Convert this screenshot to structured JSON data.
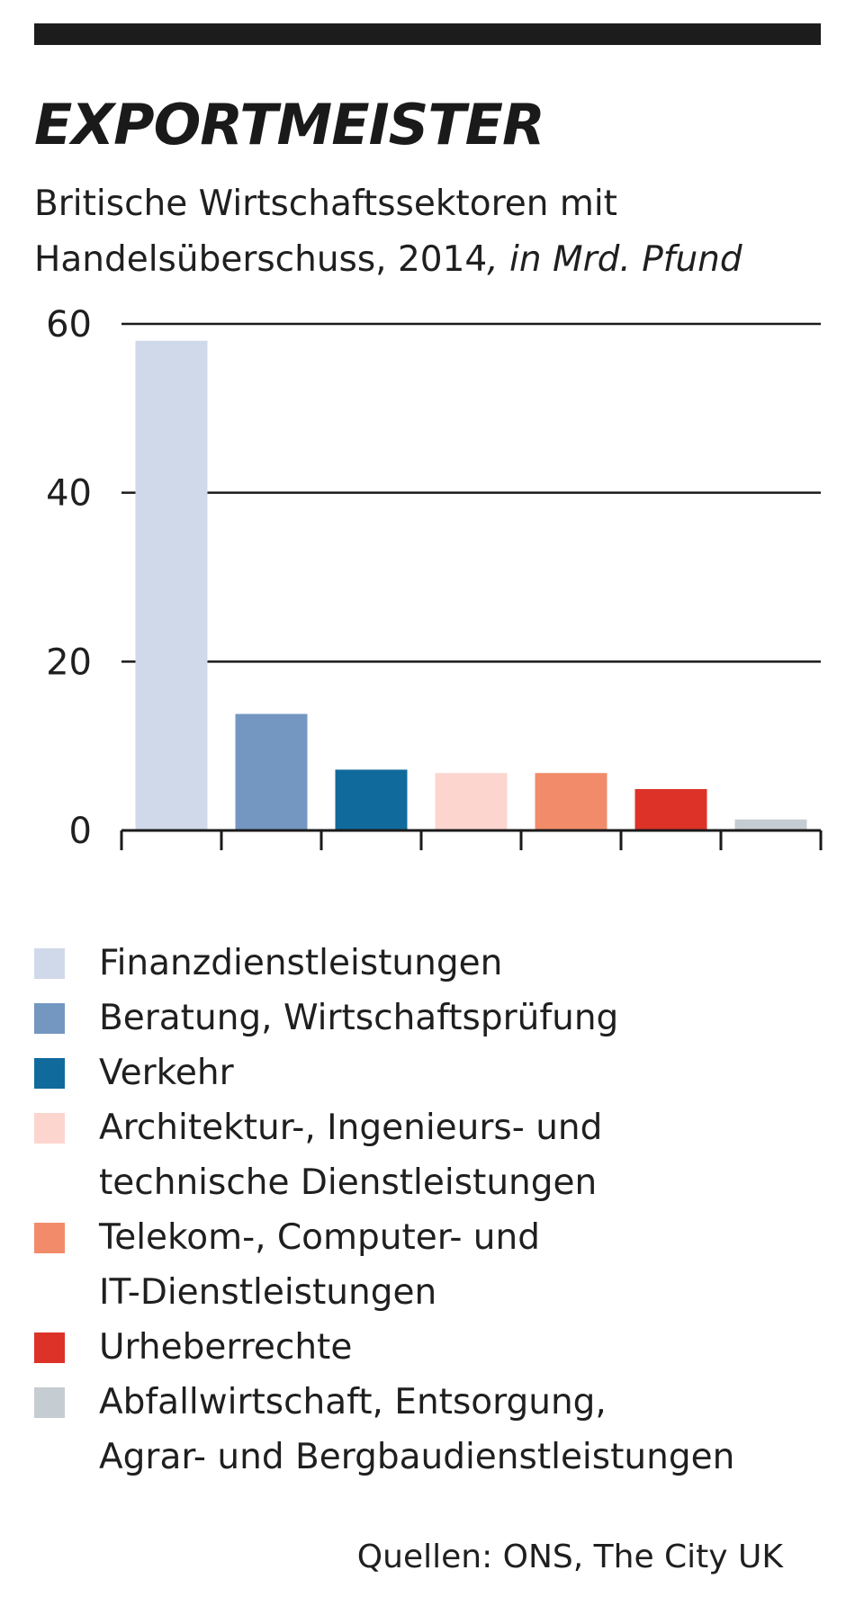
{
  "header": {
    "title": "EXPORTMEISTER",
    "subtitle_main": "Britische Wirtschaftssektoren mit Handelsüberschuss, 2014",
    "subtitle_unit": ", in Mrd. Pfund"
  },
  "chart_data": {
    "type": "bar",
    "title": "EXPORTMEISTER",
    "subtitle": "Britische Wirtschaftssektoren mit Handelsüberschuss, 2014, in Mrd. Pfund",
    "xlabel": "",
    "ylabel": "",
    "categories": [
      "Finanzdienstleistungen",
      "Beratung, Wirtschaftsprüfung",
      "Verkehr",
      "Architektur-, Ingenieurs- und technische Dienstleistungen",
      "Telekom-, Computer- und IT-Dienstleistungen",
      "Urheberrechte",
      "Abfallwirtschaft, Entsorgung, Agrar- und Bergbaudienstleistungen"
    ],
    "values": [
      58,
      13.8,
      7.2,
      6.8,
      6.8,
      4.9,
      1.3
    ],
    "colors": [
      "#d0d9e9",
      "#7497c2",
      "#116a9c",
      "#fdd5cf",
      "#f28b6a",
      "#dc3228",
      "#c5cdd2"
    ],
    "ylim": [
      0,
      60
    ],
    "yticks": [
      "0",
      "20",
      "40",
      "60"
    ],
    "ytick_values": [
      0,
      20,
      40,
      60
    ],
    "grid": true,
    "legend": "bottom"
  },
  "legend": {
    "items": [
      {
        "label": "Finanzdienstleistungen",
        "color": "#d0d9e9"
      },
      {
        "label": "Beratung, Wirtschaftsprüfung",
        "color": "#7497c2"
      },
      {
        "label": "Verkehr",
        "color": "#116a9c"
      },
      {
        "label": "Architektur-, Ingenieurs- und\ntechnische Dienstleistungen",
        "color": "#fdd5cf"
      },
      {
        "label": "Telekom-, Computer- und\nIT-Dienstleistungen",
        "color": "#f28b6a"
      },
      {
        "label": "Urheberrechte",
        "color": "#dc3228"
      },
      {
        "label": "Abfallwirtschaft, Entsorgung,\nAgrar- und Bergbaudienstleistungen",
        "color": "#c5cdd2"
      }
    ]
  },
  "source": "Quellen: ONS, The City UK"
}
